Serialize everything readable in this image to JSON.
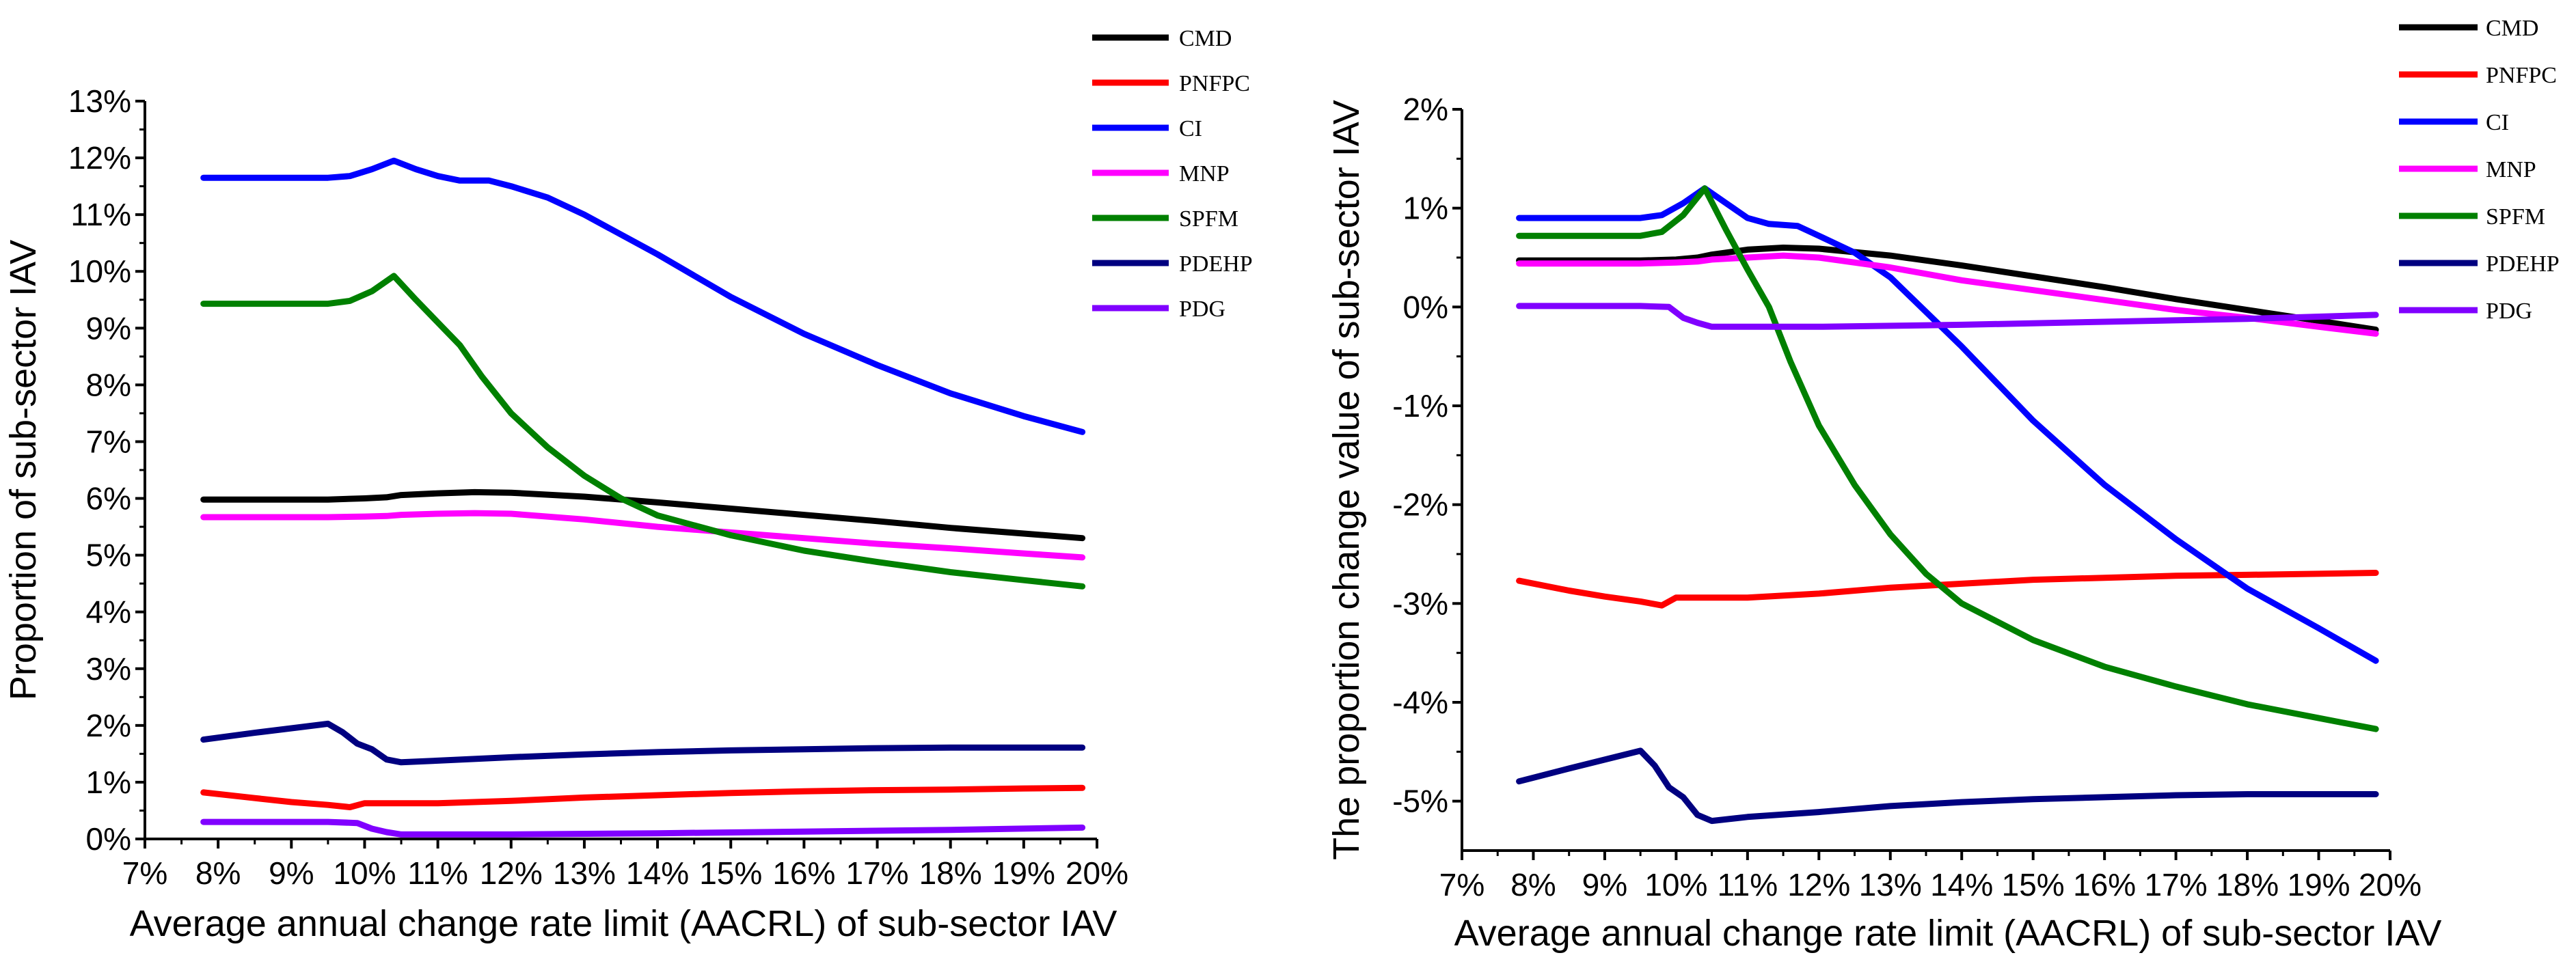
{
  "chart_data": [
    {
      "type": "line",
      "title": "",
      "xlabel": "Average annual change rate limit (AACRL) of sub-sector IAV",
      "ylabel": "Proportion of sub-sector IAV",
      "xlim": [
        7,
        20
      ],
      "ylim": [
        0,
        13
      ],
      "x_ticks": [
        7,
        8,
        9,
        10,
        11,
        12,
        13,
        14,
        15,
        16,
        17,
        18,
        19,
        20
      ],
      "x_tick_labels": [
        "7%",
        "8%",
        "9%",
        "10%",
        "11%",
        "12%",
        "13%",
        "14%",
        "15%",
        "16%",
        "17%",
        "18%",
        "19%",
        "20%"
      ],
      "y_ticks": [
        0,
        1,
        2,
        3,
        4,
        5,
        6,
        7,
        8,
        9,
        10,
        11,
        12,
        13
      ],
      "y_tick_labels": [
        "0%",
        "1%",
        "2%",
        "3%",
        "4%",
        "5%",
        "6%",
        "7%",
        "8%",
        "9%",
        "10%",
        "11%",
        "12%",
        "13%"
      ],
      "legend_position": "top-right",
      "series": [
        {
          "name": "CMD",
          "color": "#000000",
          "x": [
            7.8,
            9.5,
            10.0,
            10.3,
            10.5,
            11.0,
            11.5,
            12.0,
            13.0,
            14.0,
            15.0,
            16.0,
            17.0,
            18.0,
            19.0,
            19.8
          ],
          "y": [
            5.98,
            5.98,
            6.0,
            6.02,
            6.06,
            6.09,
            6.11,
            6.1,
            6.03,
            5.93,
            5.82,
            5.71,
            5.6,
            5.48,
            5.38,
            5.3
          ]
        },
        {
          "name": "PNFPC",
          "color": "#ff0000",
          "x": [
            7.8,
            8.5,
            9.0,
            9.5,
            9.8,
            10.0,
            10.2,
            11.0,
            12.0,
            13.0,
            14.0,
            15.0,
            16.0,
            17.0,
            18.0,
            19.0,
            19.8
          ],
          "y": [
            0.82,
            0.72,
            0.65,
            0.6,
            0.56,
            0.63,
            0.63,
            0.63,
            0.67,
            0.73,
            0.77,
            0.81,
            0.84,
            0.86,
            0.87,
            0.89,
            0.9
          ]
        },
        {
          "name": "CI",
          "color": "#0000ff",
          "x": [
            7.8,
            9.5,
            9.8,
            10.1,
            10.4,
            10.7,
            11.0,
            11.3,
            11.7,
            12.0,
            12.5,
            13.0,
            14.0,
            15.0,
            16.0,
            17.0,
            18.0,
            19.0,
            19.8
          ],
          "y": [
            11.65,
            11.65,
            11.68,
            11.8,
            11.95,
            11.8,
            11.68,
            11.6,
            11.6,
            11.5,
            11.3,
            11.0,
            10.3,
            9.55,
            8.9,
            8.35,
            7.85,
            7.45,
            7.17
          ]
        },
        {
          "name": "MNP",
          "color": "#ff00ff",
          "x": [
            7.8,
            9.5,
            10.0,
            10.3,
            10.5,
            11.0,
            11.5,
            12.0,
            13.0,
            14.0,
            15.0,
            16.0,
            17.0,
            18.0,
            19.0,
            19.8
          ],
          "y": [
            5.67,
            5.67,
            5.68,
            5.69,
            5.71,
            5.73,
            5.74,
            5.73,
            5.63,
            5.5,
            5.4,
            5.3,
            5.2,
            5.12,
            5.03,
            4.96
          ]
        },
        {
          "name": "SPFM",
          "color": "#008000",
          "x": [
            7.8,
            9.5,
            9.8,
            10.1,
            10.4,
            10.7,
            11.0,
            11.3,
            11.6,
            12.0,
            12.5,
            13.0,
            13.5,
            14.0,
            15.0,
            16.0,
            17.0,
            18.0,
            19.0,
            19.8
          ],
          "y": [
            9.43,
            9.43,
            9.48,
            9.65,
            9.92,
            9.5,
            9.1,
            8.7,
            8.15,
            7.5,
            6.9,
            6.4,
            6.0,
            5.7,
            5.35,
            5.08,
            4.88,
            4.7,
            4.56,
            4.45
          ]
        },
        {
          "name": "PDEHP",
          "color": "#000080",
          "x": [
            7.8,
            8.5,
            9.0,
            9.5,
            9.7,
            9.9,
            10.1,
            10.3,
            10.5,
            11.0,
            12.0,
            13.0,
            14.0,
            15.0,
            16.0,
            17.0,
            18.0,
            19.0,
            19.8
          ],
          "y": [
            1.75,
            1.87,
            1.95,
            2.03,
            1.88,
            1.68,
            1.58,
            1.4,
            1.35,
            1.38,
            1.44,
            1.49,
            1.53,
            1.56,
            1.58,
            1.6,
            1.61,
            1.61,
            1.61
          ]
        },
        {
          "name": "PDG",
          "color": "#8000ff",
          "x": [
            7.8,
            9.5,
            9.9,
            10.1,
            10.3,
            10.5,
            12.0,
            14.0,
            16.0,
            18.0,
            19.8
          ],
          "y": [
            0.3,
            0.3,
            0.28,
            0.18,
            0.12,
            0.08,
            0.08,
            0.1,
            0.13,
            0.16,
            0.2
          ]
        }
      ]
    },
    {
      "type": "line",
      "title": "",
      "xlabel": "Average annual change rate limit (AACRL) of sub-sector IAV",
      "ylabel": "The proportion change value of sub-sector IAV",
      "xlim": [
        7,
        20
      ],
      "ylim": [
        -5.5,
        2
      ],
      "x_ticks": [
        7,
        8,
        9,
        10,
        11,
        12,
        13,
        14,
        15,
        16,
        17,
        18,
        19,
        20
      ],
      "x_tick_labels": [
        "7%",
        "8%",
        "9%",
        "10%",
        "11%",
        "12%",
        "13%",
        "14%",
        "15%",
        "16%",
        "17%",
        "18%",
        "19%",
        "20%"
      ],
      "y_ticks": [
        -5,
        -4,
        -3,
        -2,
        -1,
        0,
        1,
        2
      ],
      "y_tick_labels": [
        "-5%",
        "-4%",
        "-3%",
        "-2%",
        "-1%",
        "0%",
        "1%",
        "2%"
      ],
      "legend_position": "top-right",
      "series": [
        {
          "name": "CMD",
          "color": "#000000",
          "x": [
            7.8,
            9.5,
            10.0,
            10.3,
            10.5,
            11.0,
            11.5,
            12.0,
            13.0,
            14.0,
            15.0,
            16.0,
            17.0,
            18.0,
            19.0,
            19.8
          ],
          "y": [
            0.47,
            0.47,
            0.48,
            0.5,
            0.53,
            0.58,
            0.6,
            0.59,
            0.52,
            0.42,
            0.31,
            0.2,
            0.08,
            -0.03,
            -0.14,
            -0.23
          ]
        },
        {
          "name": "PNFPC",
          "color": "#ff0000",
          "x": [
            7.8,
            8.5,
            9.0,
            9.5,
            9.8,
            10.0,
            10.2,
            11.0,
            12.0,
            13.0,
            14.0,
            15.0,
            16.0,
            17.0,
            18.0,
            19.0,
            19.8
          ],
          "y": [
            -2.77,
            -2.87,
            -2.93,
            -2.98,
            -3.02,
            -2.94,
            -2.94,
            -2.94,
            -2.9,
            -2.84,
            -2.8,
            -2.76,
            -2.74,
            -2.72,
            -2.71,
            -2.7,
            -2.69
          ]
        },
        {
          "name": "CI",
          "color": "#0000ff",
          "x": [
            7.8,
            9.5,
            9.8,
            10.1,
            10.4,
            10.7,
            11.0,
            11.3,
            11.7,
            12.0,
            12.5,
            13.0,
            14.0,
            15.0,
            16.0,
            17.0,
            18.0,
            19.0,
            19.8
          ],
          "y": [
            0.9,
            0.9,
            0.93,
            1.05,
            1.2,
            1.05,
            0.9,
            0.84,
            0.82,
            0.72,
            0.55,
            0.3,
            -0.4,
            -1.15,
            -1.8,
            -2.35,
            -2.85,
            -3.25,
            -3.58
          ]
        },
        {
          "name": "MNP",
          "color": "#ff00ff",
          "x": [
            7.8,
            9.5,
            10.0,
            10.3,
            10.5,
            11.0,
            11.5,
            12.0,
            13.0,
            14.0,
            15.0,
            16.0,
            17.0,
            18.0,
            19.0,
            19.8
          ],
          "y": [
            0.44,
            0.44,
            0.45,
            0.46,
            0.48,
            0.5,
            0.52,
            0.5,
            0.4,
            0.27,
            0.17,
            0.07,
            -0.03,
            -0.11,
            -0.2,
            -0.27
          ]
        },
        {
          "name": "SPFM",
          "color": "#008000",
          "x": [
            7.8,
            9.5,
            9.8,
            10.1,
            10.4,
            10.7,
            11.0,
            11.3,
            11.6,
            12.0,
            12.5,
            13.0,
            13.5,
            14.0,
            15.0,
            16.0,
            17.0,
            18.0,
            19.0,
            19.8
          ],
          "y": [
            0.72,
            0.72,
            0.76,
            0.93,
            1.2,
            0.78,
            0.38,
            0.0,
            -0.55,
            -1.2,
            -1.8,
            -2.3,
            -2.7,
            -3.0,
            -3.37,
            -3.64,
            -3.84,
            -4.02,
            -4.16,
            -4.27
          ]
        },
        {
          "name": "PDEHP",
          "color": "#000080",
          "x": [
            7.8,
            8.5,
            9.0,
            9.5,
            9.7,
            9.9,
            10.1,
            10.3,
            10.5,
            11.0,
            12.0,
            13.0,
            14.0,
            15.0,
            16.0,
            17.0,
            18.0,
            19.0,
            19.8
          ],
          "y": [
            -4.8,
            -4.67,
            -4.58,
            -4.49,
            -4.64,
            -4.86,
            -4.96,
            -5.14,
            -5.2,
            -5.16,
            -5.11,
            -5.05,
            -5.01,
            -4.98,
            -4.96,
            -4.94,
            -4.93,
            -4.93,
            -4.93
          ]
        },
        {
          "name": "PDG",
          "color": "#8000ff",
          "x": [
            7.8,
            9.5,
            9.9,
            10.1,
            10.3,
            10.5,
            12.0,
            14.0,
            16.0,
            18.0,
            19.8
          ],
          "y": [
            0.01,
            0.01,
            0.0,
            -0.11,
            -0.16,
            -0.2,
            -0.2,
            -0.18,
            -0.15,
            -0.12,
            -0.08
          ]
        }
      ]
    }
  ]
}
